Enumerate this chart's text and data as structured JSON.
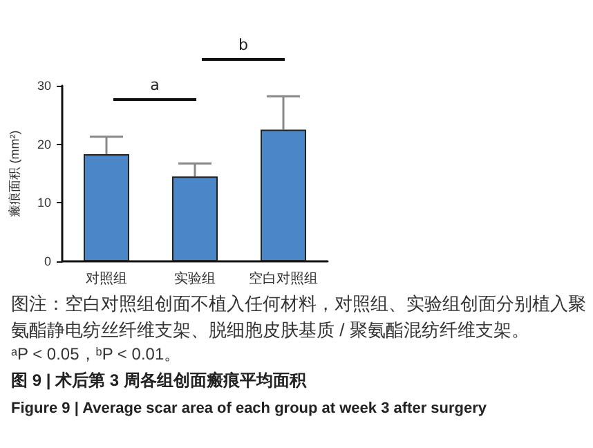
{
  "chart_data": {
    "type": "bar",
    "title": "图 9 | 术后第 3 周各组创面瘢痕平均面积",
    "subtitle": "Figure 9 | Average scar area of each group at week 3 after surgery",
    "ylabel": "瘢痕面积 (mm²)",
    "categories": [
      "对照组",
      "实验组",
      "空白对照组"
    ],
    "values": [
      18.3,
      14.5,
      22.5
    ],
    "errors": [
      [
        18.3,
        21.3
      ],
      [
        14.5,
        16.7
      ],
      [
        22.5,
        28.2
      ]
    ],
    "color": "#4a86c8",
    "ylim": [
      0,
      30
    ],
    "yticks": [
      0,
      10,
      20,
      30
    ],
    "grid": false,
    "annotations": [
      "a",
      "b",
      "图注：空白对照组创面不植入任何材料，对照组、实验组创面分别植入聚氨酯静电纺丝纤维支架、脱细胞皮肤基质 / 聚氨酯混纺纤维支架。",
      "ᵃP < 0.05，ᵇP < 0.01。"
    ]
  }
}
